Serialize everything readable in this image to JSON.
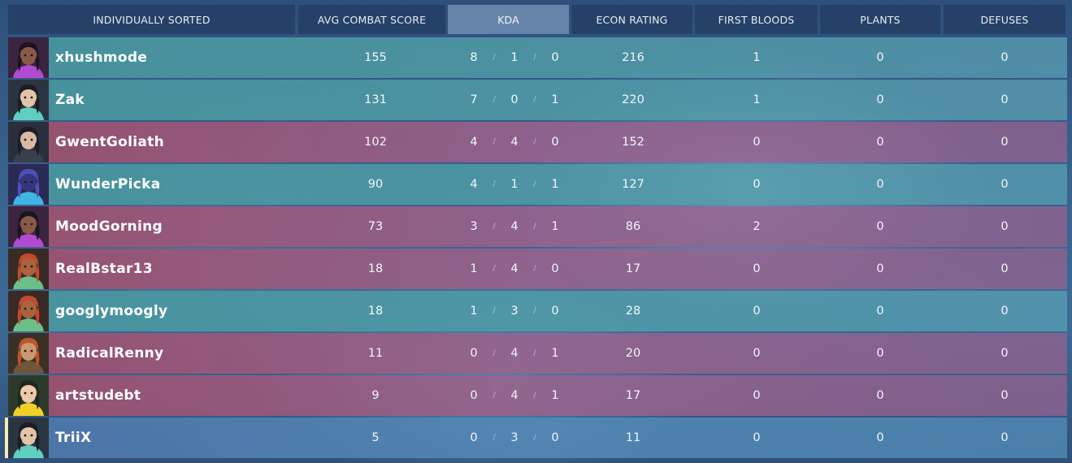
{
  "colors": {
    "team_ally": "#4896a0",
    "team_enemy": "#9e506c",
    "self_row": "#4e78aa",
    "self_marker": "#f2ecb6",
    "header_bg": "#243e64",
    "header_active_bg": "#96afcd"
  },
  "header": {
    "columns": [
      {
        "label": "INDIVIDUALLY SORTED"
      },
      {
        "label": "AVG COMBAT SCORE"
      },
      {
        "label": "KDA"
      },
      {
        "label": "ECON RATING"
      },
      {
        "label": "FIRST BLOODS"
      },
      {
        "label": "PLANTS"
      },
      {
        "label": "DEFUSES"
      }
    ],
    "active_column": "KDA"
  },
  "kda_separator": "/",
  "players": [
    {
      "name": "xhushmode",
      "team": "ally",
      "agent_icon": "reyna-portrait-icon",
      "acs": "155",
      "kills": "8",
      "deaths": "1",
      "assists": "0",
      "econ": "216",
      "first_bloods": "1",
      "plants": "0",
      "defuses": "0"
    },
    {
      "name": "Zak",
      "team": "ally",
      "agent_icon": "sage-portrait-icon",
      "acs": "131",
      "kills": "7",
      "deaths": "0",
      "assists": "1",
      "econ": "220",
      "first_bloods": "1",
      "plants": "0",
      "defuses": "0"
    },
    {
      "name": "GwentGoliath",
      "team": "enemy",
      "agent_icon": "jett-portrait-icon",
      "acs": "102",
      "kills": "4",
      "deaths": "4",
      "assists": "0",
      "econ": "152",
      "first_bloods": "0",
      "plants": "0",
      "defuses": "0"
    },
    {
      "name": "WunderPicka",
      "team": "ally",
      "agent_icon": "omen-portrait-icon",
      "acs": "90",
      "kills": "4",
      "deaths": "1",
      "assists": "1",
      "econ": "127",
      "first_bloods": "0",
      "plants": "0",
      "defuses": "0"
    },
    {
      "name": "MoodGorning",
      "team": "enemy",
      "agent_icon": "reyna-portrait-icon",
      "acs": "73",
      "kills": "3",
      "deaths": "4",
      "assists": "1",
      "econ": "86",
      "first_bloods": "2",
      "plants": "0",
      "defuses": "0"
    },
    {
      "name": "RealBstar13",
      "team": "enemy",
      "agent_icon": "phoenix-portrait-icon",
      "acs": "18",
      "kills": "1",
      "deaths": "4",
      "assists": "0",
      "econ": "17",
      "first_bloods": "0",
      "plants": "0",
      "defuses": "0"
    },
    {
      "name": "googlymoogly",
      "team": "ally",
      "agent_icon": "phoenix-portrait-icon",
      "acs": "18",
      "kills": "1",
      "deaths": "3",
      "assists": "0",
      "econ": "28",
      "first_bloods": "0",
      "plants": "0",
      "defuses": "0"
    },
    {
      "name": "RadicalRenny",
      "team": "enemy",
      "agent_icon": "brimstone-portrait-icon",
      "acs": "11",
      "kills": "0",
      "deaths": "4",
      "assists": "1",
      "econ": "20",
      "first_bloods": "0",
      "plants": "0",
      "defuses": "0"
    },
    {
      "name": "artstudebt",
      "team": "enemy",
      "agent_icon": "killjoy-portrait-icon",
      "acs": "9",
      "kills": "0",
      "deaths": "4",
      "assists": "1",
      "econ": "17",
      "first_bloods": "0",
      "plants": "0",
      "defuses": "0"
    },
    {
      "name": "TriiX",
      "team": "self",
      "agent_icon": "sage-portrait-icon",
      "acs": "5",
      "kills": "0",
      "deaths": "3",
      "assists": "0",
      "econ": "11",
      "first_bloods": "0",
      "plants": "0",
      "defuses": "0"
    }
  ]
}
